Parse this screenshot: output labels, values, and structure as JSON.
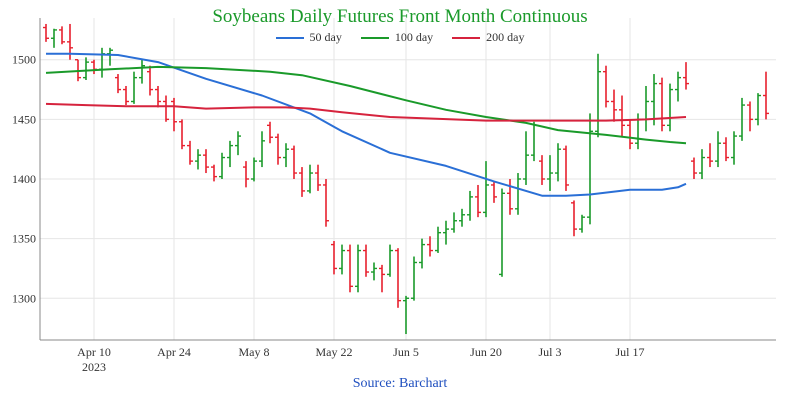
{
  "chart_data": {
    "type": "line",
    "title": "Soybeans Daily Futures Front Month Continuous",
    "source": "Source: Barchart",
    "xlabel": "",
    "ylabel": "",
    "ylim": [
      1265,
      1535
    ],
    "y_ticks": [
      1300,
      1350,
      1400,
      1450,
      1500
    ],
    "x_ticks": [
      {
        "label": "Apr 10",
        "sublabel": "2023",
        "index": 6
      },
      {
        "label": "Apr 24",
        "sublabel": "",
        "index": 16
      },
      {
        "label": "May 8",
        "sublabel": "",
        "index": 26
      },
      {
        "label": "May 22",
        "sublabel": "",
        "index": 36
      },
      {
        "label": "Jun 5",
        "sublabel": "",
        "index": 45
      },
      {
        "label": "Jun 20",
        "sublabel": "",
        "index": 55
      },
      {
        "label": "Jul 3",
        "sublabel": "",
        "index": 63
      },
      {
        "label": "Jul 17",
        "sublabel": "",
        "index": 73
      }
    ],
    "colors": {
      "up": "#1a9a2a",
      "down": "#e8202e",
      "ma50": "#2a6fd6",
      "ma100": "#1a9a2a",
      "ma200": "#d6233d"
    },
    "series": [
      {
        "name": "50 day",
        "color": "#2a6fd6",
        "points": [
          [
            0,
            1505
          ],
          [
            3,
            1505
          ],
          [
            9,
            1504
          ],
          [
            14,
            1498
          ],
          [
            20,
            1484
          ],
          [
            27,
            1470
          ],
          [
            33,
            1455
          ],
          [
            37,
            1440
          ],
          [
            43,
            1422
          ],
          [
            50,
            1411
          ],
          [
            56,
            1398
          ],
          [
            62,
            1386
          ],
          [
            65,
            1386
          ],
          [
            68,
            1387
          ],
          [
            73,
            1391
          ],
          [
            77,
            1391
          ],
          [
            79,
            1393
          ],
          [
            80,
            1396
          ]
        ]
      },
      {
        "name": "100 day",
        "color": "#1a9a2a",
        "points": [
          [
            0,
            1489
          ],
          [
            8,
            1492
          ],
          [
            14,
            1494
          ],
          [
            20,
            1493
          ],
          [
            28,
            1490
          ],
          [
            32,
            1487
          ],
          [
            38,
            1478
          ],
          [
            45,
            1466
          ],
          [
            50,
            1458
          ],
          [
            55,
            1452
          ],
          [
            60,
            1447
          ],
          [
            64,
            1441
          ],
          [
            70,
            1437
          ],
          [
            75,
            1433
          ],
          [
            78,
            1431
          ],
          [
            80,
            1430
          ]
        ]
      },
      {
        "name": "200 day",
        "color": "#d6233d",
        "points": [
          [
            0,
            1463
          ],
          [
            5,
            1462
          ],
          [
            10,
            1461
          ],
          [
            16,
            1461
          ],
          [
            20,
            1459
          ],
          [
            26,
            1460
          ],
          [
            30,
            1460
          ],
          [
            33,
            1459
          ],
          [
            37,
            1456
          ],
          [
            43,
            1452
          ],
          [
            55,
            1449
          ],
          [
            62,
            1449
          ],
          [
            70,
            1449
          ],
          [
            75,
            1450
          ],
          [
            80,
            1452
          ]
        ]
      }
    ],
    "ohlc": [
      [
        1527,
        1530,
        1515,
        1518
      ],
      [
        1518,
        1526,
        1510,
        1525
      ],
      [
        1525,
        1528,
        1513,
        1515
      ],
      [
        1515,
        1530,
        1500,
        1510
      ],
      [
        1500,
        1500,
        1482,
        1485
      ],
      [
        1485,
        1502,
        1483,
        1498
      ],
      [
        1498,
        1500,
        1488,
        1492
      ],
      [
        1492,
        1510,
        1485,
        1505
      ],
      [
        1505,
        1510,
        1495,
        1508
      ],
      [
        1485,
        1488,
        1472,
        1475
      ],
      [
        1475,
        1478,
        1462,
        1465
      ],
      [
        1465,
        1490,
        1463,
        1485
      ],
      [
        1485,
        1500,
        1480,
        1495
      ],
      [
        1490,
        1495,
        1470,
        1475
      ],
      [
        1475,
        1478,
        1460,
        1465
      ],
      [
        1465,
        1470,
        1448,
        1450
      ],
      [
        1465,
        1468,
        1440,
        1448
      ],
      [
        1448,
        1450,
        1425,
        1428
      ],
      [
        1428,
        1432,
        1412,
        1415
      ],
      [
        1415,
        1425,
        1408,
        1420
      ],
      [
        1420,
        1425,
        1405,
        1410
      ],
      [
        1410,
        1412,
        1398,
        1402
      ],
      [
        1402,
        1422,
        1400,
        1418
      ],
      [
        1418,
        1432,
        1410,
        1428
      ],
      [
        1428,
        1440,
        1420,
        1436
      ],
      [
        1410,
        1415,
        1393,
        1400
      ],
      [
        1400,
        1418,
        1398,
        1415
      ],
      [
        1415,
        1440,
        1410,
        1432
      ],
      [
        1445,
        1448,
        1430,
        1435
      ],
      [
        1435,
        1438,
        1412,
        1418
      ],
      [
        1418,
        1430,
        1410,
        1425
      ],
      [
        1425,
        1428,
        1400,
        1405
      ],
      [
        1405,
        1410,
        1385,
        1390
      ],
      [
        1390,
        1412,
        1388,
        1405
      ],
      [
        1405,
        1412,
        1390,
        1395
      ],
      [
        1395,
        1400,
        1360,
        1365
      ],
      [
        1345,
        1348,
        1320,
        1325
      ],
      [
        1325,
        1345,
        1320,
        1340
      ],
      [
        1340,
        1345,
        1305,
        1310
      ],
      [
        1310,
        1345,
        1305,
        1340
      ],
      [
        1340,
        1345,
        1318,
        1322
      ],
      [
        1322,
        1330,
        1315,
        1325
      ],
      [
        1325,
        1328,
        1305,
        1320
      ],
      [
        1320,
        1345,
        1318,
        1340
      ],
      [
        1340,
        1342,
        1292,
        1298
      ],
      [
        1298,
        1302,
        1270,
        1300
      ],
      [
        1300,
        1335,
        1298,
        1330
      ],
      [
        1330,
        1350,
        1325,
        1345
      ],
      [
        1345,
        1352,
        1335,
        1340
      ],
      [
        1340,
        1360,
        1338,
        1355
      ],
      [
        1355,
        1365,
        1345,
        1358
      ],
      [
        1358,
        1372,
        1355,
        1365
      ],
      [
        1365,
        1375,
        1360,
        1370
      ],
      [
        1370,
        1390,
        1365,
        1385
      ],
      [
        1385,
        1395,
        1368,
        1372
      ],
      [
        1372,
        1415,
        1368,
        1395
      ],
      [
        1395,
        1398,
        1380,
        1385
      ],
      [
        1320,
        1392,
        1318,
        1388
      ],
      [
        1388,
        1400,
        1370,
        1375
      ],
      [
        1375,
        1405,
        1370,
        1400
      ],
      [
        1400,
        1440,
        1395,
        1420
      ],
      [
        1420,
        1448,
        1415,
        1445
      ],
      [
        1415,
        1420,
        1395,
        1400
      ],
      [
        1400,
        1420,
        1390,
        1405
      ],
      [
        1405,
        1430,
        1398,
        1425
      ],
      [
        1425,
        1428,
        1390,
        1395
      ],
      [
        1380,
        1382,
        1352,
        1358
      ],
      [
        1358,
        1370,
        1355,
        1368
      ],
      [
        1368,
        1455,
        1362,
        1440
      ],
      [
        1440,
        1505,
        1435,
        1490
      ],
      [
        1490,
        1495,
        1460,
        1465
      ],
      [
        1465,
        1475,
        1448,
        1458
      ],
      [
        1458,
        1470,
        1435,
        1445
      ],
      [
        1445,
        1450,
        1425,
        1430
      ],
      [
        1430,
        1455,
        1425,
        1450
      ],
      [
        1450,
        1478,
        1440,
        1465
      ],
      [
        1465,
        1488,
        1445,
        1480
      ],
      [
        1480,
        1485,
        1440,
        1445
      ],
      [
        1445,
        1480,
        1440,
        1475
      ],
      [
        1475,
        1490,
        1465,
        1485
      ],
      [
        1485,
        1498,
        1475,
        1480
      ],
      [
        1415,
        1418,
        1400,
        1405
      ],
      [
        1405,
        1425,
        1400,
        1418
      ],
      [
        1418,
        1430,
        1410,
        1415
      ],
      [
        1415,
        1440,
        1410,
        1430
      ],
      [
        1430,
        1435,
        1415,
        1418
      ],
      [
        1418,
        1440,
        1412,
        1436
      ],
      [
        1436,
        1468,
        1432,
        1462
      ],
      [
        1462,
        1465,
        1440,
        1450
      ],
      [
        1450,
        1472,
        1445,
        1470
      ],
      [
        1470,
        1490,
        1450,
        1455
      ]
    ]
  }
}
